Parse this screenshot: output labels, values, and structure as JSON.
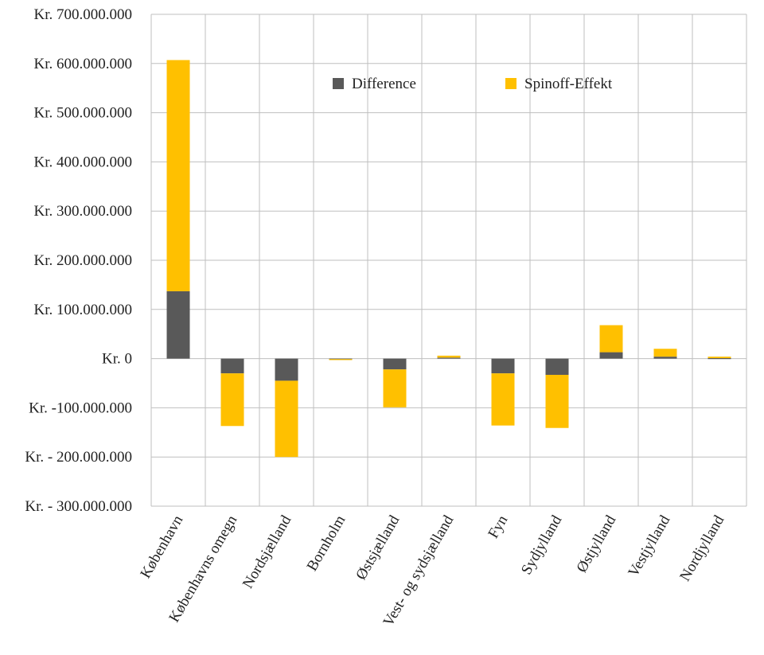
{
  "chart_data": {
    "type": "bar",
    "stacked": true,
    "categories": [
      "København",
      "Københavns omegn",
      "Nordsjælland",
      "Bornholm",
      "Østsjælland",
      "Vest- og sydsjælland",
      "Fyn",
      "Sydjylland",
      "Østjylland",
      "Vestjylland",
      "Nordjylland"
    ],
    "series": [
      {
        "name": "Difference",
        "color": "#595959",
        "values": [
          137000000,
          -30000000,
          -45000000,
          -1000000,
          -22000000,
          2000000,
          -30000000,
          -33000000,
          13000000,
          4000000,
          1000000
        ]
      },
      {
        "name": "Spinoff-Effekt",
        "color": "#ffc000",
        "values": [
          470000000,
          -107000000,
          -155000000,
          -1000000,
          -77000000,
          4000000,
          -106000000,
          -108000000,
          55000000,
          16000000,
          3000000
        ]
      }
    ],
    "ylim": [
      -300000000,
      700000000
    ],
    "yticks": [
      {
        "value": 700000000,
        "label": "Kr. 700.000.000"
      },
      {
        "value": 600000000,
        "label": "Kr. 600.000.000"
      },
      {
        "value": 500000000,
        "label": "Kr. 500.000.000"
      },
      {
        "value": 400000000,
        "label": "Kr. 400.000.000"
      },
      {
        "value": 300000000,
        "label": "Kr. 300.000.000"
      },
      {
        "value": 200000000,
        "label": "Kr. 200.000.000"
      },
      {
        "value": 100000000,
        "label": "Kr. 100.000.000"
      },
      {
        "value": 0,
        "label": "Kr. 0"
      },
      {
        "value": -100000000,
        "label": "Kr. -100.000.000"
      },
      {
        "value": -200000000,
        "label": "Kr. - 200.000.000"
      },
      {
        "value": -300000000,
        "label": "Kr. - 300.000.000"
      }
    ],
    "grid": true,
    "legend": "top-right-inside",
    "title": "",
    "xlabel": "",
    "ylabel": ""
  }
}
